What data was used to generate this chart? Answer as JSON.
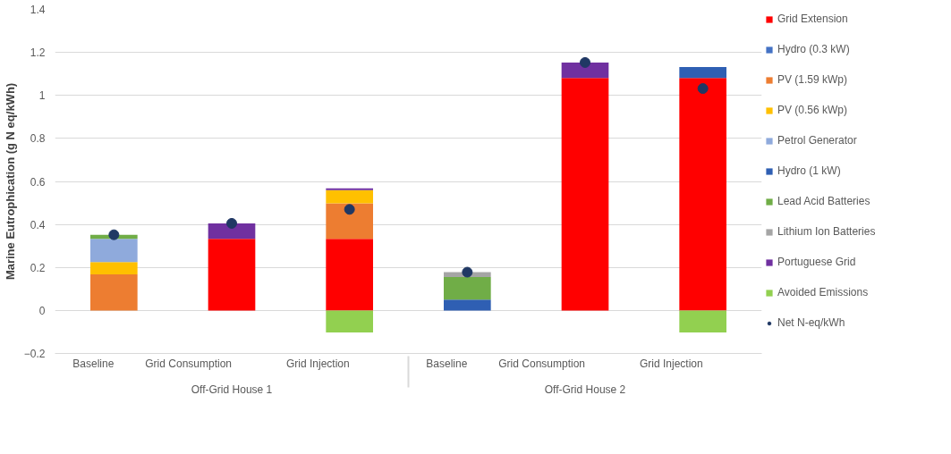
{
  "chart_data": {
    "type": "bar",
    "stacked": true,
    "ylabel": "Marine Eutrophication (g N eq/kWh)",
    "categories": [
      "Baseline",
      "Grid Consumption",
      "Grid Injection",
      "Baseline",
      "Grid Consumption",
      "Grid Injection"
    ],
    "annotations": [
      "Off-Grid House 1",
      "Off-Grid House 2"
    ],
    "series": [
      {
        "name": "Grid Extension",
        "color": "#ff0000",
        "values": [
          null,
          0.333,
          0.333,
          null,
          1.081,
          1.081
        ]
      },
      {
        "name": "Hydro (0.3 kW)",
        "color": "#4472c4",
        "values": [
          null,
          null,
          null,
          null,
          null,
          null
        ]
      },
      {
        "name": "PV (1.59 kWp)",
        "color": "#ed7d31",
        "values": [
          0.168,
          null,
          0.165,
          null,
          null,
          null
        ]
      },
      {
        "name": "PV (0.56 kWp)",
        "color": "#ffc000",
        "values": [
          0.057,
          null,
          0.061,
          null,
          null,
          null
        ]
      },
      {
        "name": "Petrol Generator",
        "color": "#8faadc",
        "values": [
          0.108,
          null,
          null,
          null,
          null,
          null
        ]
      },
      {
        "name": "Hydro (1 kW)",
        "color": "#2f5fb3",
        "values": [
          null,
          null,
          null,
          0.05,
          null,
          0.051
        ]
      },
      {
        "name": "Lead Acid Batteries",
        "color": "#70ad47",
        "values": [
          0.019,
          null,
          null,
          0.105,
          null,
          null
        ]
      },
      {
        "name": "Lithium Ion Batteries",
        "color": "#a5a5a5",
        "values": [
          null,
          null,
          null,
          0.023,
          null,
          null
        ]
      },
      {
        "name": "Portuguese Grid",
        "color": "#7030a0",
        "values": [
          null,
          0.072,
          0.009,
          null,
          0.072,
          null
        ]
      },
      {
        "name": "Avoided Emissions",
        "color": "#92d050",
        "values": [
          null,
          null,
          -0.102,
          null,
          null,
          -0.102
        ]
      },
      {
        "name": "Net N-eq/kWh",
        "color": "#203864",
        "type": "scatter",
        "values": [
          0.352,
          0.405,
          0.47,
          0.178,
          1.153,
          1.032
        ]
      }
    ],
    "ylim": [
      -0.2,
      1.4
    ],
    "yticks": [
      -0.2,
      0,
      0.2,
      0.4,
      0.6,
      0.8,
      1,
      1.2,
      1.4
    ],
    "grid": "y",
    "legend": "right",
    "marker": "circle"
  }
}
